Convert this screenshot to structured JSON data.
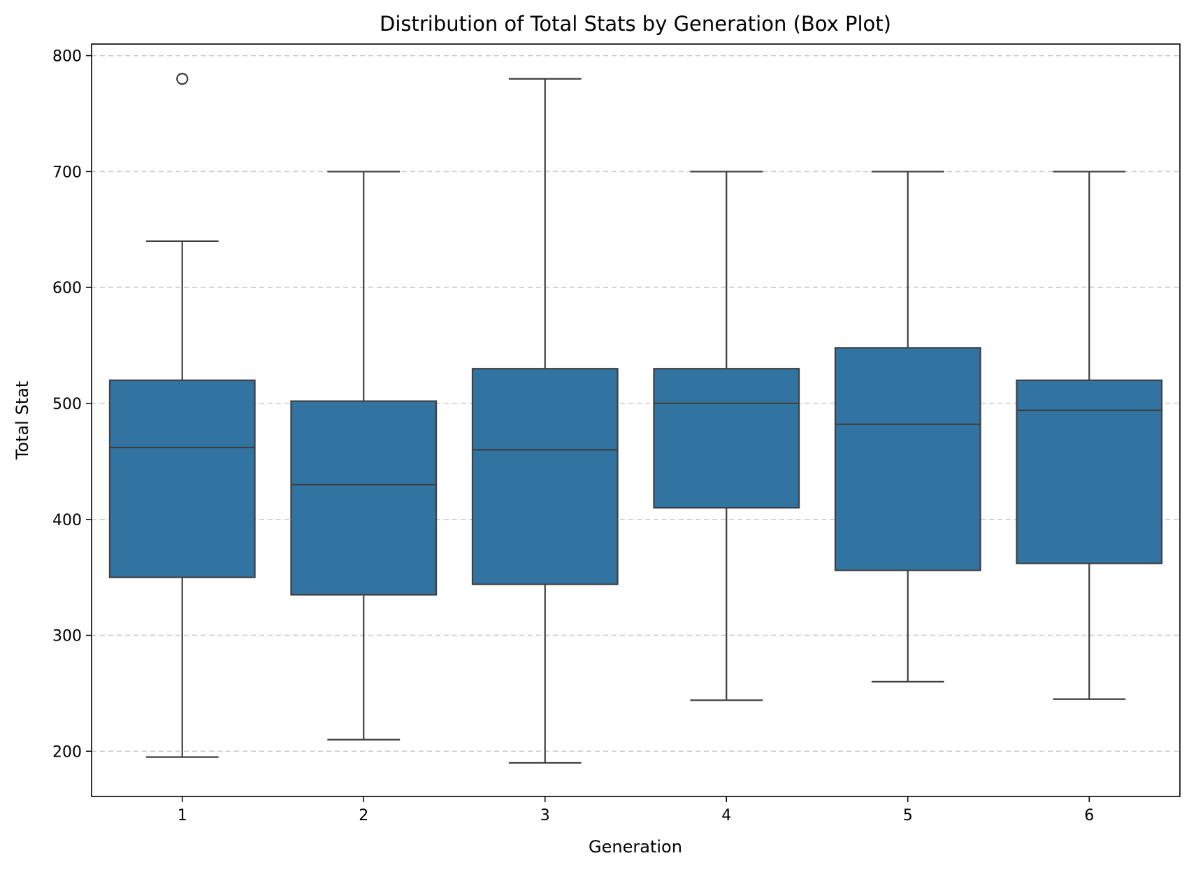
{
  "chart_data": {
    "type": "box",
    "title": "Distribution of Total Stats by Generation (Box Plot)",
    "xlabel": "Generation",
    "ylabel": "Total Stat",
    "categories": [
      "1",
      "2",
      "3",
      "4",
      "5",
      "6"
    ],
    "yticks": [
      "200",
      "300",
      "400",
      "500",
      "600",
      "700",
      "800"
    ],
    "ylim": [
      161,
      810
    ],
    "grid": "y, dashed",
    "box_color": "#3274a1",
    "line_color": "#3f3f3f",
    "boxes": [
      {
        "category": "1",
        "whisker_low": 195,
        "q1": 350,
        "median": 462,
        "q3": 520,
        "whisker_high": 640,
        "outliers": [
          780
        ]
      },
      {
        "category": "2",
        "whisker_low": 210,
        "q1": 335,
        "median": 430,
        "q3": 502,
        "whisker_high": 700,
        "outliers": []
      },
      {
        "category": "3",
        "whisker_low": 190,
        "q1": 344,
        "median": 460,
        "q3": 530,
        "whisker_high": 780,
        "outliers": []
      },
      {
        "category": "4",
        "whisker_low": 244,
        "q1": 410,
        "median": 500,
        "q3": 530,
        "whisker_high": 700,
        "outliers": []
      },
      {
        "category": "5",
        "whisker_low": 260,
        "q1": 356,
        "median": 482,
        "q3": 548,
        "whisker_high": 700,
        "outliers": []
      },
      {
        "category": "6",
        "whisker_low": 245,
        "q1": 362,
        "median": 494,
        "q3": 520,
        "whisker_high": 700,
        "outliers": []
      }
    ]
  }
}
